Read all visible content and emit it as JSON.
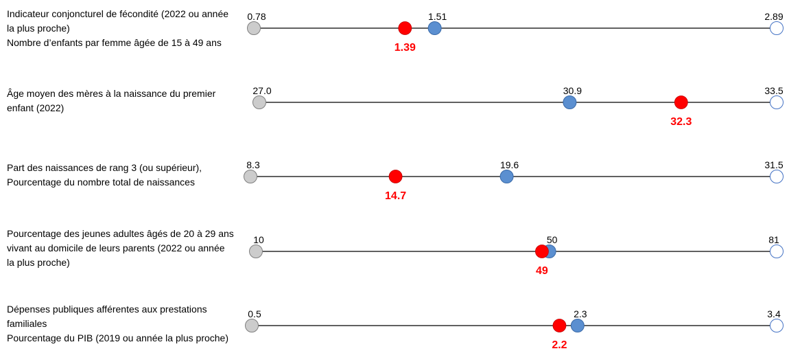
{
  "colors": {
    "min": "#cccccc",
    "avg": "#5b8fd0",
    "country": "#ff0000",
    "max": "#ffffff",
    "line": "#000000"
  },
  "chart_data": {
    "type": "dot-range",
    "rows": [
      {
        "label_lines": [
          "Indicateur conjoncturel de fécondité (2022 ou année",
          "la plus proche)",
          "Nombre d’enfants par femme âgée de 15 à 49 ans"
        ],
        "min": 0.78,
        "avg": 1.51,
        "country": 1.39,
        "max": 2.89,
        "min_label": "0.78",
        "avg_label": "1.51",
        "country_label": "1.39",
        "max_label": "2.89"
      },
      {
        "label_lines": [
          "Âge moyen des mères à la naissance du premier",
          "enfant (2022)"
        ],
        "min": 27.0,
        "avg": 30.9,
        "country": 32.3,
        "max": 33.5,
        "min_label": "27.0",
        "avg_label": "30.9",
        "country_label": "32.3",
        "max_label": "33.5"
      },
      {
        "label_lines": [
          "Part des naissances de rang 3 (ou supérieur),",
          "Pourcentage du nombre total de naissances"
        ],
        "min": 8.3,
        "avg": 19.6,
        "country": 14.7,
        "max": 31.5,
        "min_label": "8.3",
        "avg_label": "19.6",
        "country_label": "14.7",
        "max_label": "31.5"
      },
      {
        "label_lines": [
          "Pourcentage des jeunes adultes âgés de 20 à 29 ans",
          "vivant au domicile de leurs parents (2022 ou année",
          "la plus proche)"
        ],
        "min": 10,
        "avg": 50,
        "country": 49,
        "max": 81,
        "min_label": "10",
        "avg_label": "50",
        "country_label": "49",
        "max_label": "81"
      },
      {
        "label_lines": [
          "Dépenses publiques afférentes aux prestations",
          "familiales",
          "Pourcentage du PIB (2019 ou année la plus proche)"
        ],
        "min": 0.5,
        "avg": 2.3,
        "country": 2.2,
        "max": 3.4,
        "min_label": "0.5",
        "avg_label": "2.3",
        "country_label": "2.2",
        "max_label": "3.4"
      }
    ]
  }
}
